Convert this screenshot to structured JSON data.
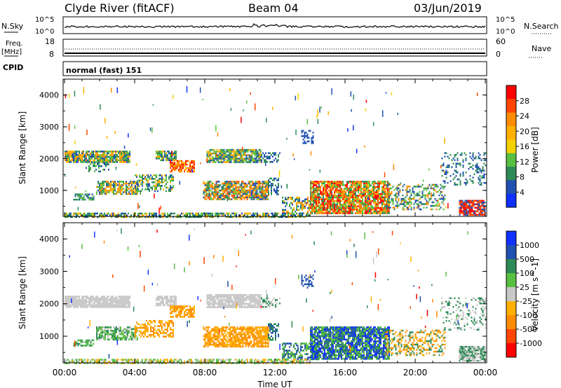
{
  "header": {
    "station": "Clyde River (fitACF)",
    "beam": "Beam 04",
    "date": "03/Jun/2019"
  },
  "status_panels": {
    "nsky_label": "N.Sky",
    "nsky_ticks": [
      "10^5",
      "10^0"
    ],
    "nsearch_label": "N.Search",
    "nsearch_ticks": [
      "10^5",
      "10^0"
    ],
    "freq_label": "Freq.",
    "freq_unit": "[MHz]",
    "freq_ticks": [
      "18",
      "8"
    ],
    "nave_label": "Nave",
    "nave_ticks": [
      "60",
      "0"
    ],
    "cpid_label": "CPID",
    "cpid_value": "normal (fast) 151"
  },
  "chart_data": [
    {
      "type": "heatmap",
      "name": "power",
      "ylabel": "Slant Range [km]",
      "xlabel": "Time UT",
      "x_ticks": [
        "00:00",
        "04:00",
        "08:00",
        "12:00",
        "16:00",
        "20:00",
        "00:00"
      ],
      "x_range_hours": [
        0,
        24
      ],
      "y_ticks": [
        "4000",
        "3000",
        "2000",
        "1000"
      ],
      "y_range_km": [
        180,
        4500
      ],
      "colorbar": {
        "label": "Power [dB]",
        "ticks": [
          "28",
          "24",
          "20",
          "16",
          "12",
          "8",
          "4"
        ],
        "colors": [
          "#ff0000",
          "#ff4500",
          "#ff8c00",
          "#ffb000",
          "#f5d000",
          "#58c040",
          "#2e8b57",
          "#2050b0",
          "#1030ff"
        ]
      },
      "scatter_regions": [
        {
          "t0": 0.0,
          "t1": 3.7,
          "r0": 1900,
          "r1": 2250,
          "colors": [
            "#2e8b57",
            "#58c040",
            "#ffb000",
            "#ff8c00",
            "#2050b0"
          ],
          "density": 0.9
        },
        {
          "t0": 5.2,
          "t1": 6.4,
          "r0": 1950,
          "r1": 2250,
          "colors": [
            "#2e8b57",
            "#58c040",
            "#ffb000",
            "#2050b0"
          ],
          "density": 0.85
        },
        {
          "t0": 6.0,
          "t1": 7.4,
          "r0": 1600,
          "r1": 1950,
          "colors": [
            "#ff4500",
            "#ff8c00",
            "#ff0000",
            "#ffb000"
          ],
          "density": 0.8
        },
        {
          "t0": 8.1,
          "t1": 11.2,
          "r0": 1900,
          "r1": 2300,
          "colors": [
            "#2e8b57",
            "#58c040",
            "#ffb000",
            "#2050b0"
          ],
          "density": 0.85
        },
        {
          "t0": 11.2,
          "t1": 12.3,
          "r0": 1900,
          "r1": 2200,
          "colors": [
            "#2050b0",
            "#2e8b57"
          ],
          "density": 0.5
        },
        {
          "t0": 1.2,
          "t1": 2.5,
          "r0": 1900,
          "r1": 1600,
          "colors": [
            "#2050b0",
            "#2e8b57",
            "#58c040"
          ],
          "density": 0.4
        },
        {
          "t0": 0.5,
          "t1": 1.7,
          "r0": 700,
          "r1": 900,
          "colors": [
            "#2050b0",
            "#2e8b57",
            "#58c040"
          ],
          "density": 0.6
        },
        {
          "t0": 1.8,
          "t1": 4.2,
          "r0": 900,
          "r1": 1300,
          "colors": [
            "#2e8b57",
            "#58c040",
            "#ffb000",
            "#ff8c00",
            "#2050b0"
          ],
          "density": 0.75
        },
        {
          "t0": 4.0,
          "t1": 6.2,
          "r0": 1000,
          "r1": 1500,
          "colors": [
            "#2e8b57",
            "#58c040",
            "#2050b0",
            "#ffb000"
          ],
          "density": 0.55
        },
        {
          "t0": 7.9,
          "t1": 11.6,
          "r0": 700,
          "r1": 1300,
          "colors": [
            "#ff8c00",
            "#ffb000",
            "#ff4500",
            "#2e8b57",
            "#58c040",
            "#2050b0"
          ],
          "density": 0.8
        },
        {
          "t0": 11.6,
          "t1": 12.2,
          "r0": 900,
          "r1": 1400,
          "colors": [
            "#2050b0",
            "#2e8b57"
          ],
          "density": 0.5
        },
        {
          "t0": 12.4,
          "t1": 14.5,
          "r0": 300,
          "r1": 800,
          "colors": [
            "#ff8c00",
            "#ffb000",
            "#2e8b57",
            "#58c040",
            "#2050b0"
          ],
          "density": 0.55
        },
        {
          "t0": 14.0,
          "t1": 18.5,
          "r0": 300,
          "r1": 1300,
          "colors": [
            "#ff0000",
            "#ff4500",
            "#ff8c00",
            "#ffb000",
            "#58c040",
            "#2e8b57"
          ],
          "density": 0.85
        },
        {
          "t0": 18.3,
          "t1": 21.7,
          "r0": 400,
          "r1": 1200,
          "colors": [
            "#2e8b57",
            "#2050b0",
            "#58c040",
            "#ff8c00"
          ],
          "density": 0.4
        },
        {
          "t0": 22.5,
          "t1": 24.0,
          "r0": 250,
          "r1": 700,
          "colors": [
            "#ff0000",
            "#ff4500",
            "#2050b0"
          ],
          "density": 0.85
        },
        {
          "t0": 21.5,
          "t1": 24.0,
          "r0": 1200,
          "r1": 2200,
          "colors": [
            "#2050b0",
            "#2e8b57"
          ],
          "density": 0.25
        },
        {
          "t0": 0.0,
          "t1": 14.0,
          "r0": 180,
          "r1": 300,
          "colors": [
            "#58c040",
            "#ffb000",
            "#2e8b57",
            "#2050b0"
          ],
          "density": 0.7
        },
        {
          "t0": 13.5,
          "t1": 14.2,
          "r0": 2500,
          "r1": 2900,
          "colors": [
            "#2050b0"
          ],
          "density": 0.4
        }
      ]
    },
    {
      "type": "heatmap",
      "name": "velocity",
      "ylabel": "Slant Range [km]",
      "xlabel": "Time UT",
      "x_ticks": [
        "00:00",
        "04:00",
        "08:00",
        "12:00",
        "16:00",
        "20:00",
        "00:00"
      ],
      "x_range_hours": [
        0,
        24
      ],
      "y_ticks": [
        "4000",
        "3000",
        "2000",
        "1000"
      ],
      "y_range_km": [
        180,
        4500
      ],
      "colorbar": {
        "label": "Velocity [m s^-1]",
        "ticks": [
          "1000",
          "500",
          "100",
          "25",
          "-25",
          "-100",
          "-500",
          "-1000"
        ],
        "colors": [
          "#1030ff",
          "#2050b0",
          "#2e8b57",
          "#58c040",
          "#c8c8c8",
          "#ffb000",
          "#ff8c00",
          "#ff4500",
          "#ff0000"
        ]
      },
      "scatter_regions": [
        {
          "t0": 0.0,
          "t1": 3.7,
          "r0": 1900,
          "r1": 2250,
          "colors": [
            "#c8c8c8"
          ],
          "density": 0.92
        },
        {
          "t0": 5.2,
          "t1": 6.4,
          "r0": 1950,
          "r1": 2250,
          "colors": [
            "#c8c8c8"
          ],
          "density": 0.85
        },
        {
          "t0": 6.0,
          "t1": 7.4,
          "r0": 1600,
          "r1": 1950,
          "colors": [
            "#ff8c00",
            "#ffb000"
          ],
          "density": 0.8
        },
        {
          "t0": 8.1,
          "t1": 11.2,
          "r0": 1900,
          "r1": 2300,
          "colors": [
            "#c8c8c8"
          ],
          "density": 0.88
        },
        {
          "t0": 11.2,
          "t1": 12.3,
          "r0": 1900,
          "r1": 2200,
          "colors": [
            "#c8c8c8",
            "#2e8b57"
          ],
          "density": 0.5
        },
        {
          "t0": 0.5,
          "t1": 1.7,
          "r0": 700,
          "r1": 900,
          "colors": [
            "#2e8b57",
            "#58c040"
          ],
          "density": 0.6
        },
        {
          "t0": 1.8,
          "t1": 4.2,
          "r0": 900,
          "r1": 1300,
          "colors": [
            "#2e8b57",
            "#58c040",
            "#c8c8c8"
          ],
          "density": 0.75
        },
        {
          "t0": 4.0,
          "t1": 6.2,
          "r0": 1000,
          "r1": 1500,
          "colors": [
            "#ff8c00",
            "#ffb000"
          ],
          "density": 0.55
        },
        {
          "t0": 7.9,
          "t1": 11.6,
          "r0": 700,
          "r1": 1300,
          "colors": [
            "#ff8c00",
            "#ffb000"
          ],
          "density": 0.8
        },
        {
          "t0": 11.6,
          "t1": 12.2,
          "r0": 900,
          "r1": 1400,
          "colors": [
            "#2050b0",
            "#2e8b57"
          ],
          "density": 0.5
        },
        {
          "t0": 12.4,
          "t1": 14.5,
          "r0": 300,
          "r1": 800,
          "colors": [
            "#58c040",
            "#2e8b57",
            "#2050b0"
          ],
          "density": 0.55
        },
        {
          "t0": 14.0,
          "t1": 18.5,
          "r0": 300,
          "r1": 1300,
          "colors": [
            "#2050b0",
            "#2e8b57",
            "#58c040",
            "#1030ff"
          ],
          "density": 0.85
        },
        {
          "t0": 18.3,
          "t1": 21.7,
          "r0": 400,
          "r1": 1200,
          "colors": [
            "#ff8c00",
            "#ffb000",
            "#2e8b57"
          ],
          "density": 0.4
        },
        {
          "t0": 22.5,
          "t1": 24.0,
          "r0": 250,
          "r1": 700,
          "colors": [
            "#c8c8c8",
            "#2e8b57"
          ],
          "density": 0.85
        },
        {
          "t0": 21.5,
          "t1": 24.0,
          "r0": 1200,
          "r1": 2200,
          "colors": [
            "#2e8b57",
            "#c8c8c8"
          ],
          "density": 0.25
        },
        {
          "t0": 0.0,
          "t1": 14.0,
          "r0": 180,
          "r1": 300,
          "colors": [
            "#c8c8c8",
            "#58c040",
            "#ffb000"
          ],
          "density": 0.7
        },
        {
          "t0": 13.5,
          "t1": 14.2,
          "r0": 2500,
          "r1": 2900,
          "colors": [
            "#2050b0"
          ],
          "density": 0.4
        }
      ]
    }
  ]
}
